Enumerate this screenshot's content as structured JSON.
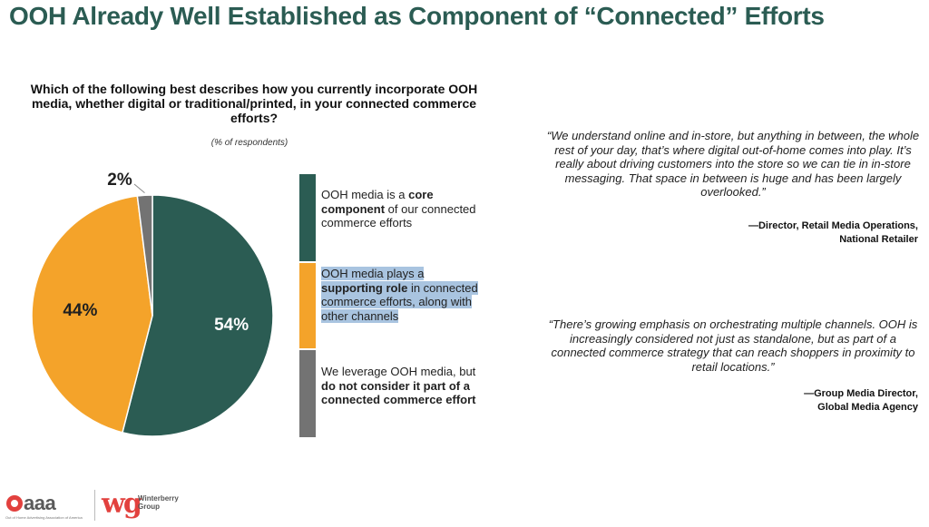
{
  "title": "OOH Already Well Established as Component of “Connected” Efforts",
  "question": "Which of the following best describes how you currently incorporate OOH media, whether digital or traditional/printed, in your connected commerce efforts?",
  "subtitle": "(% of respondents)",
  "chart_data": {
    "type": "pie",
    "title": "Which of the following best describes how you currently incorporate OOH media, whether digital or traditional/printed, in your connected commerce efforts?",
    "subtitle": "(% of respondents)",
    "unit": "%",
    "slices": [
      {
        "name": "core component",
        "value": 54,
        "label": "54%",
        "color": "#2b5c53"
      },
      {
        "name": "supporting role",
        "value": 44,
        "label": "44%",
        "color": "#f4a32a"
      },
      {
        "name": "not part of connected commerce",
        "value": 2,
        "label": "2%",
        "color": "#737373"
      }
    ]
  },
  "legend": [
    {
      "pre": "OOH media is a ",
      "bold": "core component",
      "post": " of our connected commerce efforts"
    },
    {
      "pre": "OOH media plays a ",
      "bold": "supporting role",
      "post": " in connected commerce efforts, along with other channels"
    },
    {
      "pre": "We leverage OOH media, but ",
      "bold": "do not consider it part of a connected commerce effort",
      "post": ""
    }
  ],
  "quotes": [
    {
      "text": "“We understand online and in-store, but anything in between, the whole rest of your day, that’s where digital out-of-home comes into play. It’s really about driving customers into the store so we can tie in in-store messaging. That space in between is huge and has been largely overlooked.”",
      "attr1": "—Director, Retail Media Operations,",
      "attr2": "National Retailer"
    },
    {
      "text": "“There’s growing emphasis on orchestrating multiple channels. OOH is increasingly considered not just as standalone, but as part of a connected commerce strategy that can reach shoppers in proximity to retail locations.”",
      "attr1": "—Group Media Director,",
      "attr2": "Global Media Agency"
    }
  ],
  "footer": {
    "oaaa_logo": "aaa",
    "oaaa_tagline": "Out of Home Advertising Association of America",
    "wg_mark": "wg",
    "wg_name_1": "Winterberry",
    "wg_name_2": "Group"
  },
  "colors": {
    "title": "#2b5c53",
    "teal": "#2b5c53",
    "orange": "#f4a32a",
    "gray": "#737373",
    "highlight": "#a9c4e0",
    "logo_red": "#e2413e"
  }
}
